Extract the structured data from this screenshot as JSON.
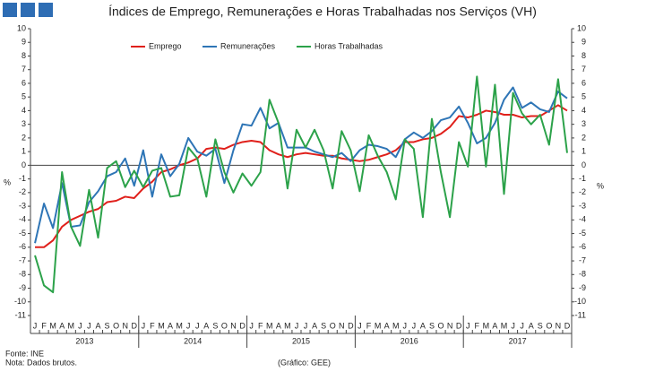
{
  "chart_data": {
    "type": "line",
    "title": "Índices de Emprego, Remunerações e Horas Trabalhadas nos Serviços (VH)",
    "categories": [
      "J",
      "F",
      "M",
      "A",
      "M",
      "J",
      "J",
      "A",
      "S",
      "O",
      "N",
      "D",
      "J",
      "F",
      "M",
      "A",
      "M",
      "J",
      "J",
      "A",
      "S",
      "O",
      "N",
      "D",
      "J",
      "F",
      "M",
      "A",
      "M",
      "J",
      "J",
      "A",
      "S",
      "O",
      "N",
      "D",
      "J",
      "F",
      "M",
      "A",
      "M",
      "J",
      "J",
      "A",
      "S",
      "O",
      "N",
      "D",
      "J",
      "F",
      "M",
      "A",
      "M",
      "J",
      "J",
      "A",
      "S",
      "O",
      "N",
      "D"
    ],
    "years": [
      "2013",
      "2014",
      "2015",
      "2016",
      "2017"
    ],
    "series": [
      {
        "name": "Emprego",
        "color": "#e0201b",
        "values": [
          -6,
          -6,
          -5.5,
          -4.5,
          -4,
          -3.7,
          -3.4,
          -3.2,
          -2.7,
          -2.6,
          -2.3,
          -2.4,
          -1.7,
          -1.2,
          -0.5,
          -0.3,
          0,
          0.2,
          0.5,
          1.2,
          1.3,
          1.2,
          1.5,
          1.7,
          1.8,
          1.7,
          1.1,
          0.8,
          0.6,
          0.8,
          0.9,
          0.8,
          0.7,
          0.7,
          0.5,
          0.4,
          0.3,
          0.4,
          0.6,
          0.8,
          1.1,
          1.7,
          1.7,
          1.9,
          2,
          2.3,
          2.8,
          3.6,
          3.5,
          3.7,
          4,
          3.9,
          3.7,
          3.7,
          3.5,
          3.6,
          3.6,
          4,
          4.4,
          4
        ]
      },
      {
        "name": "Remunerações",
        "color": "#2e75b6",
        "values": [
          -5.7,
          -2.8,
          -4.6,
          -1.3,
          -4.5,
          -4.4,
          -2.7,
          -1.9,
          -0.8,
          -0.5,
          0.5,
          -1.5,
          1.1,
          -2.3,
          0.8,
          -0.8,
          0.1,
          2,
          1,
          0.7,
          1.2,
          -1.3,
          1.1,
          3,
          2.9,
          4.2,
          2.7,
          3.1,
          1.3,
          1.3,
          1.3,
          1,
          0.8,
          0.6,
          0.9,
          0.3,
          1.1,
          1.5,
          1.4,
          1.2,
          0.6,
          1.9,
          2.4,
          2,
          2.5,
          3.3,
          3.5,
          4.3,
          3.1,
          1.6,
          2,
          3.1,
          4.8,
          5.7,
          4.2,
          4.6,
          4.1,
          3.9,
          5.4,
          4.9
        ]
      },
      {
        "name": "Horas Trabalhadas",
        "color": "#2ca24a",
        "values": [
          -6.6,
          -8.8,
          -9.3,
          -0.5,
          -4.5,
          -5.9,
          -1.8,
          -5.3,
          -0.2,
          0.3,
          -1.6,
          -0.4,
          -1.6,
          -0.4,
          -0.2,
          -2.3,
          -2.2,
          1.3,
          0.5,
          -2.3,
          1.9,
          -0.5,
          -2,
          -0.6,
          -1.5,
          -0.5,
          4.8,
          3.1,
          -1.7,
          2.6,
          1.3,
          2.6,
          1.1,
          -1.7,
          2.5,
          1.1,
          -1.9,
          2.2,
          0.7,
          -0.5,
          -2.5,
          1.9,
          1.2,
          -3.8,
          3.4,
          -0.5,
          -3.8,
          1.7,
          -0.1,
          6.5,
          -0.1,
          5.9,
          -2.1,
          5.3,
          3.8,
          3,
          3.7,
          1.5,
          6.3,
          0.9
        ]
      }
    ],
    "ylabel": "%",
    "y2label": "%",
    "ylim": [
      -11,
      10
    ],
    "yticks": [
      -11,
      -10,
      -9,
      -8,
      -7,
      -6,
      -5,
      -4,
      -3,
      -2,
      -1,
      0,
      1,
      2,
      3,
      4,
      5,
      6,
      7,
      8,
      9,
      10
    ],
    "y2lim": [
      -11,
      10
    ],
    "y2ticks": [
      -11,
      -10,
      -9,
      -8,
      -7,
      -6,
      -5,
      -4,
      -3,
      -2,
      -1,
      0,
      1,
      2,
      3,
      4,
      5,
      6,
      7,
      8,
      9,
      10
    ],
    "source": "Fonte: INE",
    "note": "Nota: Dados brutos.",
    "credit": "(Gráfico: GEE)"
  }
}
